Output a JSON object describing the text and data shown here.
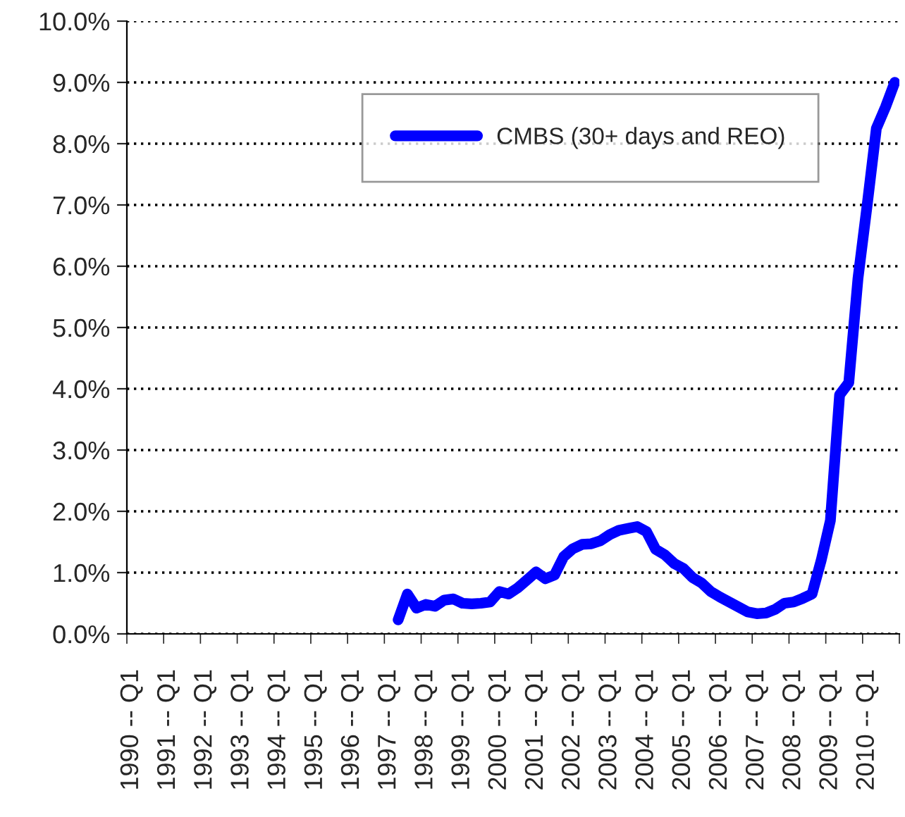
{
  "chart_data": {
    "type": "line",
    "categories": [
      "1990 -- Q1",
      null,
      null,
      null,
      "1991 -- Q1",
      null,
      null,
      null,
      "1992 -- Q1",
      null,
      null,
      null,
      "1993 -- Q1",
      null,
      null,
      null,
      "1994 -- Q1",
      null,
      null,
      null,
      "1995 -- Q1",
      null,
      null,
      null,
      "1996 -- Q1",
      null,
      null,
      null,
      "1997 -- Q1",
      null,
      null,
      null,
      "1998 -- Q1",
      null,
      null,
      null,
      "1999 -- Q1",
      null,
      null,
      null,
      "2000 -- Q1",
      null,
      null,
      null,
      "2001 -- Q1",
      null,
      null,
      null,
      "2002 -- Q1",
      null,
      null,
      null,
      "2003 -- Q1",
      null,
      null,
      null,
      "2004 -- Q1",
      null,
      null,
      null,
      "2005 -- Q1",
      null,
      null,
      null,
      "2006 -- Q1",
      null,
      null,
      null,
      "2007 -- Q1",
      null,
      null,
      null,
      "2008 -- Q1",
      null,
      null,
      null,
      "2009 -- Q1",
      null,
      null,
      null,
      "2010 -- Q1",
      null,
      null,
      null
    ],
    "series": [
      {
        "name": "CMBS (30+ days and REO)",
        "color": "#0000ff",
        "values": [
          null,
          null,
          null,
          null,
          null,
          null,
          null,
          null,
          null,
          null,
          null,
          null,
          null,
          null,
          null,
          null,
          null,
          null,
          null,
          null,
          null,
          null,
          null,
          null,
          null,
          null,
          null,
          null,
          null,
          0.23,
          0.65,
          0.42,
          0.48,
          0.45,
          0.55,
          0.57,
          0.5,
          0.49,
          0.5,
          0.52,
          0.69,
          0.65,
          0.75,
          0.88,
          1.01,
          0.9,
          0.96,
          1.26,
          1.39,
          1.46,
          1.47,
          1.52,
          1.62,
          1.69,
          1.72,
          1.75,
          1.67,
          1.38,
          1.29,
          1.15,
          1.07,
          0.92,
          0.83,
          0.69,
          0.6,
          0.52,
          0.44,
          0.36,
          0.33,
          0.34,
          0.4,
          0.5,
          0.52,
          0.58,
          0.65,
          1.2,
          1.85,
          3.9,
          4.1,
          5.8,
          7.0,
          8.25,
          8.6,
          9.0
        ]
      }
    ],
    "ylim": [
      0,
      10
    ],
    "yticks": [
      {
        "value": 0,
        "label": "0.0%"
      },
      {
        "value": 1,
        "label": "1.0%"
      },
      {
        "value": 2,
        "label": "2.0%"
      },
      {
        "value": 3,
        "label": "3.0%"
      },
      {
        "value": 4,
        "label": "4.0%"
      },
      {
        "value": 5,
        "label": "5.0%"
      },
      {
        "value": 6,
        "label": "6.0%"
      },
      {
        "value": 7,
        "label": "7.0%"
      },
      {
        "value": 8,
        "label": "8.0%"
      },
      {
        "value": 9,
        "label": "9.0%"
      },
      {
        "value": 10,
        "label": "10.0%"
      }
    ],
    "grid": "y",
    "legend": "top",
    "marker": "none",
    "line_style": "solid"
  }
}
